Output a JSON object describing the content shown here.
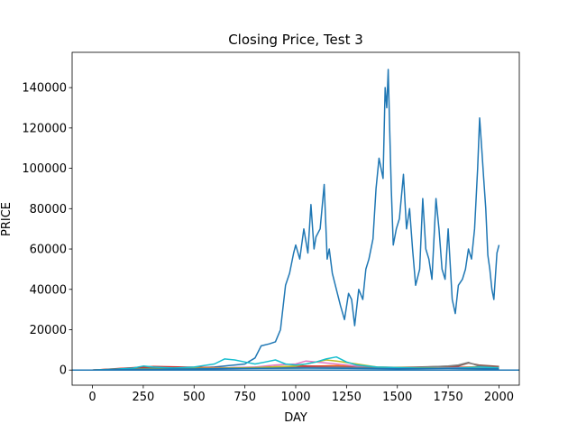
{
  "chart_data": {
    "type": "line",
    "title": "Closing Price, Test 3",
    "xlabel": "DAY",
    "ylabel": "PRICE",
    "xlim": [
      -100,
      2100
    ],
    "ylim": [
      -7500,
      157500
    ],
    "xticks": [
      0,
      250,
      500,
      750,
      1000,
      1250,
      1500,
      1750,
      2000
    ],
    "yticks": [
      0,
      20000,
      40000,
      60000,
      80000,
      100000,
      120000,
      140000
    ],
    "grid": false,
    "legend": "none",
    "hline": 0,
    "series": [
      {
        "color": "#1f77b4",
        "x": [
          0,
          100,
          200,
          300,
          400,
          500,
          600,
          650,
          700,
          750,
          800,
          830,
          870,
          900,
          925,
          950,
          970,
          990,
          1000,
          1020,
          1040,
          1060,
          1075,
          1090,
          1100,
          1120,
          1140,
          1155,
          1165,
          1180,
          1200,
          1220,
          1240,
          1260,
          1275,
          1290,
          1310,
          1330,
          1345,
          1360,
          1380,
          1395,
          1410,
          1430,
          1440,
          1448,
          1455,
          1462,
          1470,
          1480,
          1495,
          1510,
          1530,
          1545,
          1560,
          1575,
          1590,
          1610,
          1625,
          1640,
          1655,
          1670,
          1690,
          1705,
          1720,
          1735,
          1750,
          1770,
          1785,
          1800,
          1820,
          1835,
          1850,
          1865,
          1880,
          1895,
          1905,
          1915,
          1925,
          1935,
          1945,
          1955,
          1965,
          1975,
          1990,
          2000
        ],
        "y": [
          0,
          300,
          500,
          700,
          900,
          1000,
          1500,
          2000,
          2500,
          3000,
          6000,
          12000,
          13000,
          14000,
          20000,
          42000,
          48000,
          58000,
          62000,
          55000,
          70000,
          58000,
          82000,
          60000,
          66000,
          70000,
          92000,
          55000,
          60000,
          48000,
          40000,
          32000,
          25000,
          38000,
          35000,
          22000,
          40000,
          35000,
          50000,
          55000,
          65000,
          90000,
          105000,
          95000,
          140000,
          130000,
          149000,
          120000,
          90000,
          62000,
          70000,
          75000,
          97000,
          70000,
          80000,
          60000,
          42000,
          50000,
          85000,
          60000,
          55000,
          45000,
          85000,
          70000,
          50000,
          45000,
          70000,
          35000,
          28000,
          42000,
          45000,
          50000,
          60000,
          55000,
          70000,
          100000,
          125000,
          110000,
          95000,
          80000,
          57000,
          50000,
          40000,
          35000,
          58000,
          62000
        ]
      },
      {
        "color": "#ff7f0e",
        "x": [
          0,
          150,
          300,
          450,
          600,
          750,
          900,
          1050,
          1200,
          1350,
          1500,
          1650,
          1800,
          1950,
          2000
        ],
        "y": [
          0,
          800,
          1500,
          1200,
          900,
          1300,
          1600,
          1800,
          2200,
          1500,
          1000,
          1200,
          1400,
          1700,
          1200
        ]
      },
      {
        "color": "#2ca02c",
        "x": [
          0,
          200,
          400,
          600,
          800,
          1000,
          1200,
          1400,
          1600,
          1800,
          2000
        ],
        "y": [
          0,
          500,
          700,
          900,
          1100,
          1000,
          1400,
          900,
          800,
          1100,
          900
        ]
      },
      {
        "color": "#d62728",
        "x": [
          0,
          150,
          300,
          450,
          600,
          750,
          900,
          1050,
          1200,
          1350,
          1500,
          1650,
          1800,
          2000
        ],
        "y": [
          0,
          900,
          1800,
          1500,
          1200,
          1000,
          1600,
          2000,
          1700,
          1400,
          1200,
          1000,
          1300,
          900
        ]
      },
      {
        "color": "#9467bd",
        "x": [
          0,
          200,
          400,
          600,
          800,
          1000,
          1200,
          1400,
          1600,
          1800,
          2000
        ],
        "y": [
          0,
          600,
          900,
          700,
          1000,
          1200,
          1500,
          1000,
          900,
          1200,
          1000
        ]
      },
      {
        "color": "#8c564b",
        "x": [
          0,
          200,
          400,
          600,
          800,
          1000,
          1200,
          1400,
          1600,
          1800,
          1850,
          1900,
          2000
        ],
        "y": [
          0,
          700,
          1200,
          1000,
          900,
          1100,
          1300,
          1200,
          1500,
          2000,
          3500,
          2500,
          1800
        ]
      },
      {
        "color": "#e377c2",
        "x": [
          0,
          200,
          400,
          600,
          800,
          900,
          1000,
          1050,
          1100,
          1150,
          1200,
          1300,
          1400,
          1600,
          1800,
          2000
        ],
        "y": [
          0,
          500,
          800,
          1000,
          1500,
          2500,
          3000,
          4500,
          4000,
          3500,
          3000,
          2000,
          1500,
          1200,
          1000,
          900
        ]
      },
      {
        "color": "#7f7f7f",
        "x": [
          0,
          200,
          400,
          600,
          800,
          1000,
          1200,
          1400,
          1600,
          1750,
          1800,
          1850,
          1900,
          2000
        ],
        "y": [
          0,
          600,
          1000,
          900,
          1000,
          1200,
          1400,
          1200,
          1300,
          2000,
          2500,
          3800,
          2000,
          1200
        ]
      },
      {
        "color": "#bcbd22",
        "x": [
          0,
          200,
          400,
          600,
          800,
          1000,
          1100,
          1150,
          1200,
          1300,
          1400,
          1600,
          1800,
          2000
        ],
        "y": [
          0,
          500,
          800,
          900,
          1200,
          2000,
          4000,
          5000,
          4500,
          3000,
          1500,
          1100,
          900,
          700
        ]
      },
      {
        "color": "#17becf",
        "x": [
          0,
          100,
          200,
          250,
          300,
          400,
          500,
          600,
          650,
          700,
          750,
          800,
          850,
          900,
          950,
          1000,
          1050,
          1100,
          1150,
          1200,
          1250,
          1300,
          1400,
          1500,
          1600,
          1700,
          1800,
          1900,
          2000
        ],
        "y": [
          0,
          400,
          1000,
          2000,
          1500,
          1000,
          1500,
          3000,
          5500,
          5000,
          4000,
          3000,
          4000,
          5000,
          3000,
          2500,
          3000,
          4000,
          5500,
          6500,
          4000,
          2500,
          1500,
          1200,
          1000,
          900,
          1000,
          1500,
          1000
        ]
      },
      {
        "color": "#1f77b4",
        "x": [
          0,
          250,
          500,
          750,
          1000,
          1250,
          1500,
          1750,
          2000
        ],
        "y": [
          0,
          400,
          600,
          800,
          1000,
          900,
          700,
          800,
          600
        ]
      }
    ]
  }
}
